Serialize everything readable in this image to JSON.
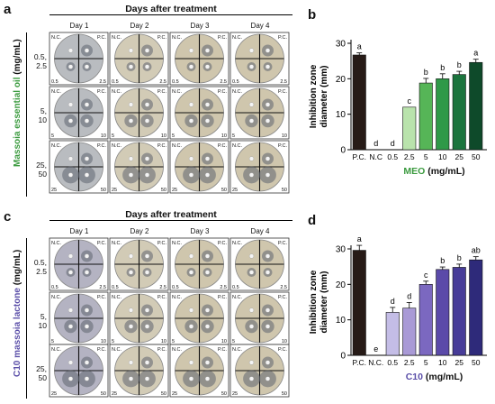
{
  "panel_labels": {
    "a": "a",
    "b": "b",
    "c": "c",
    "d": "d"
  },
  "panel_a": {
    "header": "Days after treatment",
    "days": [
      "Day 1",
      "Day 2",
      "Day 3",
      "Day 4"
    ],
    "ylabel_colored": "Massoia essential oil",
    "ylabel_unit": " (mg/mL)",
    "row_labels": [
      [
        "0.5,",
        "2.5"
      ],
      [
        "5,",
        "10"
      ],
      [
        "25,",
        "50"
      ]
    ],
    "quadrant_labels": [
      [
        "N.C.",
        "P.C.",
        "0.5",
        "2.5"
      ],
      [
        "N.C.",
        "P.C.",
        "5",
        "10"
      ],
      [
        "N.C.",
        "P.C.",
        "25",
        "50"
      ]
    ],
    "dish_color": "#b9bcc0",
    "accent_color": "#3a9a3e"
  },
  "panel_c": {
    "header": "Days after treatment",
    "days": [
      "Day 1",
      "Day 2",
      "Day 3",
      "Day 4"
    ],
    "ylabel_colored": "C10 massoia lactone",
    "ylabel_unit": " (mg/mL)",
    "row_labels": [
      [
        "0.5,",
        "2.5"
      ],
      [
        "5,",
        "10"
      ],
      [
        "25,",
        "50"
      ]
    ],
    "quadrant_labels": [
      [
        "N.C.",
        "P.C.",
        "0.5",
        "2.5"
      ],
      [
        "N.C.",
        "P.C.",
        "5",
        "10"
      ],
      [
        "N.C.",
        "P.C.",
        "25",
        "50"
      ]
    ],
    "dish_color": "#b4b3c2",
    "accent_color": "#5a4ea8"
  },
  "chart_data": [
    {
      "type": "bar",
      "panel": "b",
      "ylabel": "Inhibition zone diameter (mm)",
      "xlabel_colored": "MEO",
      "xlabel_unit": " (mg/mL)",
      "categories": [
        "P.C.",
        "N.C",
        "0.5",
        "2.5",
        "5",
        "10",
        "25",
        "50"
      ],
      "values": [
        26.7,
        0,
        0,
        12.0,
        18.8,
        20.0,
        21.2,
        24.6
      ],
      "errors": [
        0.6,
        0,
        0,
        0,
        1.3,
        1.4,
        0.9,
        0.9
      ],
      "letters": [
        "a",
        "d",
        "d",
        "c",
        "b",
        "b",
        "b",
        "a"
      ],
      "colors": [
        "#271b17",
        "#271b17",
        "#271b17",
        "#b9e3ac",
        "#56b557",
        "#2f9948",
        "#1b743d",
        "#0e4a2a"
      ],
      "ylim": [
        0,
        30
      ],
      "yticks": [
        0,
        10,
        20,
        30
      ],
      "accent_color": "#3a9a3e"
    },
    {
      "type": "bar",
      "panel": "d",
      "ylabel": "Inhibition zone diameter (mm)",
      "xlabel_colored": "C10",
      "xlabel_unit": " (mg/mL)",
      "categories": [
        "P.C.",
        "N.C.",
        "0.5",
        "2.5",
        "5",
        "10",
        "25",
        "50"
      ],
      "values": [
        29.6,
        0,
        12.1,
        13.3,
        20.0,
        24.2,
        24.8,
        26.9
      ],
      "errors": [
        1.4,
        0,
        1.4,
        1.6,
        0.9,
        0.7,
        0.9,
        0.9
      ],
      "letters": [
        "a",
        "e",
        "d",
        "d",
        "c",
        "b",
        "b",
        "ab"
      ],
      "colors": [
        "#271b17",
        "#271b17",
        "#c4bde6",
        "#a99ad6",
        "#7b68c0",
        "#5b4aa9",
        "#473c98",
        "#2e2a7a"
      ],
      "ylim": [
        0,
        30
      ],
      "yticks": [
        0,
        10,
        20,
        30
      ],
      "accent_color": "#5a4ea8"
    }
  ]
}
